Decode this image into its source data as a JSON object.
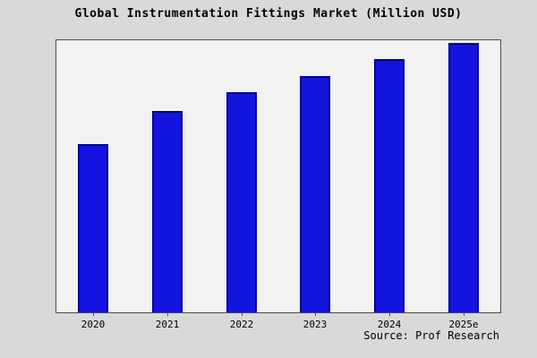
{
  "page": {
    "background": "#d9d9d9"
  },
  "title": "Global Instrumentation Fittings Market (Million USD)",
  "source": "Source: Prof Research",
  "colors": {
    "bar_fill": "#1414e0",
    "bar_border": "#000099",
    "plot_background": "#f2f2f2",
    "frame_border": "#4a4a4a"
  },
  "chart_data": {
    "type": "bar",
    "title": "Global Instrumentation Fittings Market (Million USD)",
    "categories": [
      "2020",
      "2021",
      "2022",
      "2023",
      "2024",
      "2025e"
    ],
    "values": [
      62,
      74,
      81,
      87,
      93,
      99
    ],
    "xlabel": "",
    "ylabel": "",
    "ylim": [
      0,
      100
    ],
    "grid": false,
    "legend": false,
    "y_axis_ticks_visible": false,
    "source": "Source: Prof Research",
    "bar_fill": "#1414e0",
    "bar_border": "#000099"
  }
}
